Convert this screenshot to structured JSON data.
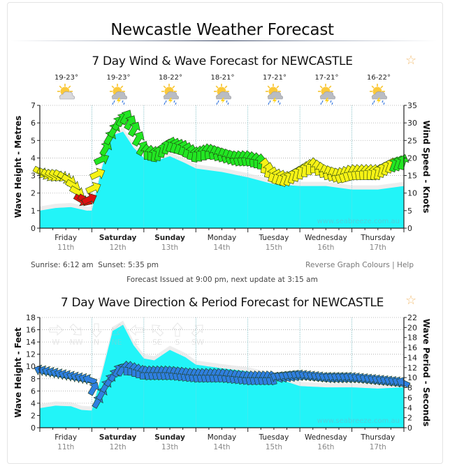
{
  "page": {
    "title": "Newcastle Weather Forecast"
  },
  "wind_chart": {
    "title": "7 Day Wind & Wave Forecast for NEWCASTLE",
    "favorite_icon": "star-icon",
    "temps": [
      "19-23°",
      "19-23°",
      "18-22°",
      "18-21°",
      "17-21°",
      "17-21°",
      "16-22°"
    ],
    "weather_icons": [
      "partly-cloudy-icon",
      "storm-sun-icon",
      "storm-sun-icon",
      "storm-sun-icon",
      "storm-sun-icon",
      "storm-sun-icon",
      "storm-sun-icon"
    ],
    "sunrise": "Sunrise: 6:12 am",
    "sunset": "Sunset: 5:35 pm",
    "reverse_link": "Reverse Graph Colours",
    "separator": "|",
    "help_link": "Help",
    "watermark": "www.seabreeze.com.au"
  },
  "forecast_issued": "Forecast Issued at 9:00 pm, next update at 3:15 am",
  "wave_chart": {
    "title": "7 Day Wave Direction & Period Forecast for NEWCASTLE",
    "favorite_icon": "star-icon",
    "legend_directions": [
      "W",
      "NW",
      "N",
      "NE",
      "E",
      "SE",
      "S",
      "SW"
    ],
    "watermark": "www.seabreeze.com.au"
  },
  "days": [
    {
      "name": "Friday",
      "date": "11th",
      "bold": false
    },
    {
      "name": "Saturday",
      "date": "12th",
      "bold": true
    },
    {
      "name": "Sunday",
      "date": "13th",
      "bold": true
    },
    {
      "name": "Monday",
      "date": "14th",
      "bold": false
    },
    {
      "name": "Tuesday",
      "date": "15th",
      "bold": false
    },
    {
      "name": "Wednesday",
      "date": "16th",
      "bold": false
    },
    {
      "name": "Thursday",
      "date": "17th",
      "bold": false
    }
  ],
  "colors": {
    "wave_fill": "#22f4f8",
    "wind_light": "#dd1111",
    "wind_moderate": "#f6f215",
    "wind_strong": "#22e622",
    "wave_arrow": "#2f7fe0"
  },
  "chart_data": [
    {
      "type": "area",
      "title": "7 Day Wind & Wave Forecast for NEWCASTLE",
      "ylabel": "Wave Height - Metres",
      "y2label": "Wind Speed - Knots",
      "ylim": [
        0,
        7
      ],
      "y2lim": [
        0,
        35
      ],
      "yticks": [
        0,
        1,
        2,
        3,
        4,
        5,
        6,
        7
      ],
      "y2ticks": [
        0,
        5,
        10,
        15,
        20,
        25,
        30,
        35
      ],
      "x_days": [
        "Friday 11th",
        "Saturday 12th",
        "Sunday 13th",
        "Monday 14th",
        "Tuesday 15th",
        "Wednesday 16th",
        "Thursday 17th"
      ],
      "x_unit": "days from start",
      "grid": true,
      "series": [
        {
          "name": "Wave Height (m)",
          "x": [
            0,
            0.3,
            0.6,
            0.9,
            1.0,
            1.2,
            1.4,
            1.6,
            1.8,
            2.0,
            2.2,
            2.5,
            2.8,
            3.0,
            3.5,
            4.0,
            4.5,
            5.0,
            5.5,
            6.0,
            6.5,
            7.0
          ],
          "values": [
            1.0,
            1.15,
            1.2,
            1.0,
            1.0,
            3.5,
            5.3,
            5.5,
            4.6,
            4.0,
            3.8,
            4.1,
            3.7,
            3.4,
            3.2,
            2.9,
            2.5,
            2.4,
            2.4,
            2.2,
            2.2,
            2.4
          ]
        },
        {
          "name": "Wind Speed (kt)",
          "x": [
            0,
            0.2,
            0.4,
            0.55,
            0.7,
            0.8,
            0.95,
            1.05,
            1.2,
            1.35,
            1.5,
            1.65,
            1.8,
            2.0,
            2.25,
            2.5,
            2.75,
            3.0,
            3.25,
            3.5,
            3.75,
            4.0,
            4.25,
            4.5,
            4.75,
            5.0,
            5.25,
            5.5,
            5.75,
            6.0,
            6.25,
            6.5,
            6.75,
            7.0
          ],
          "values": [
            16,
            15,
            15,
            14,
            11,
            8,
            8,
            12,
            20,
            26,
            30,
            32,
            29,
            22,
            21,
            24,
            23,
            21,
            22,
            21,
            20,
            20,
            19,
            15,
            14,
            16,
            18,
            16,
            15,
            16,
            16,
            16,
            18,
            19
          ]
        }
      ]
    },
    {
      "type": "area",
      "title": "7 Day Wave Direction & Period Forecast for NEWCASTLE",
      "ylabel": "Wave Height - Feet",
      "y2label": "Wave Period - Seconds",
      "ylim": [
        0,
        18
      ],
      "y2lim": [
        0,
        22
      ],
      "yticks": [
        0,
        2,
        4,
        6,
        8,
        10,
        12,
        14,
        16,
        18
      ],
      "y2ticks": [
        0,
        2,
        4,
        6,
        8,
        10,
        12,
        14,
        16,
        18,
        20,
        22
      ],
      "x_days": [
        "Friday 11th",
        "Saturday 12th",
        "Sunday 13th",
        "Monday 14th",
        "Tuesday 15th",
        "Wednesday 16th",
        "Thursday 17th"
      ],
      "x_unit": "days from start",
      "grid": true,
      "series": [
        {
          "name": "Wave Height (ft)",
          "x": [
            0,
            0.3,
            0.6,
            0.8,
            1.0,
            1.2,
            1.4,
            1.6,
            1.8,
            2.0,
            2.2,
            2.5,
            2.8,
            3.0,
            3.5,
            4.0,
            4.5,
            5.0,
            5.5,
            6.0,
            6.5,
            7.0
          ],
          "values": [
            3.2,
            3.6,
            3.5,
            2.9,
            2.8,
            9.0,
            15.8,
            16.8,
            13.5,
            11.3,
            11.0,
            12.7,
            11.5,
            10.3,
            9.7,
            9.2,
            8.2,
            6.8,
            6.6,
            6.6,
            6.4,
            6.6
          ]
        },
        {
          "name": "Wave Period (s)",
          "x": [
            0,
            0.5,
            1.0,
            1.1,
            1.3,
            1.5,
            1.7,
            2.0,
            2.5,
            3.0,
            3.5,
            4.0,
            4.5,
            5.0,
            5.5,
            6.0,
            6.5,
            7.0
          ],
          "values": [
            11.5,
            10.5,
            9.5,
            5,
            9,
            11.5,
            12,
            11,
            11,
            10.5,
            10.5,
            10,
            10,
            10.5,
            10,
            10,
            9.5,
            9
          ]
        }
      ]
    }
  ]
}
